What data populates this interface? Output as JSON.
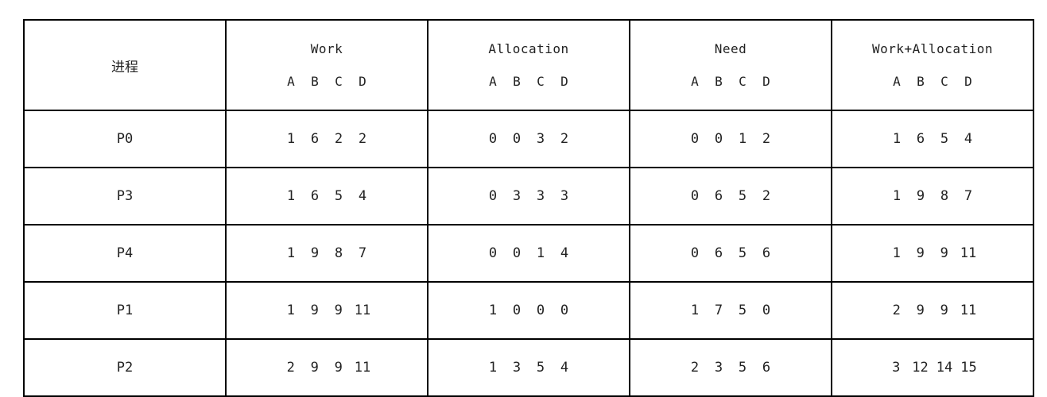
{
  "table": {
    "headers": {
      "process": "进程",
      "groups": [
        "Work",
        "Allocation",
        "Need",
        "Work+Allocation"
      ],
      "resources": [
        "A",
        "B",
        "C",
        "D"
      ]
    },
    "rows": [
      {
        "process": "P0",
        "work": [
          "1",
          "6",
          "2",
          "2"
        ],
        "allocation": [
          "0",
          "0",
          "3",
          "2"
        ],
        "need": [
          "0",
          "0",
          "1",
          "2"
        ],
        "work_plus_allocation": [
          "1",
          "6",
          "5",
          "4"
        ]
      },
      {
        "process": "P3",
        "work": [
          "1",
          "6",
          "5",
          "4"
        ],
        "allocation": [
          "0",
          "3",
          "3",
          "3"
        ],
        "need": [
          "0",
          "6",
          "5",
          "2"
        ],
        "work_plus_allocation": [
          "1",
          "9",
          "8",
          "7"
        ]
      },
      {
        "process": "P4",
        "work": [
          "1",
          "9",
          "8",
          "7"
        ],
        "allocation": [
          "0",
          "0",
          "1",
          "4"
        ],
        "need": [
          "0",
          "6",
          "5",
          "6"
        ],
        "work_plus_allocation": [
          "1",
          "9",
          "9",
          "11"
        ]
      },
      {
        "process": "P1",
        "work": [
          "1",
          "9",
          "9",
          "11"
        ],
        "allocation": [
          "1",
          "0",
          "0",
          "0"
        ],
        "need": [
          "1",
          "7",
          "5",
          "0"
        ],
        "work_plus_allocation": [
          "2",
          "9",
          "9",
          "11"
        ]
      },
      {
        "process": "P2",
        "work": [
          "2",
          "9",
          "9",
          "11"
        ],
        "allocation": [
          "1",
          "3",
          "5",
          "4"
        ],
        "need": [
          "2",
          "3",
          "5",
          "6"
        ],
        "work_plus_allocation": [
          "3",
          "12",
          "14",
          "15"
        ]
      }
    ]
  }
}
